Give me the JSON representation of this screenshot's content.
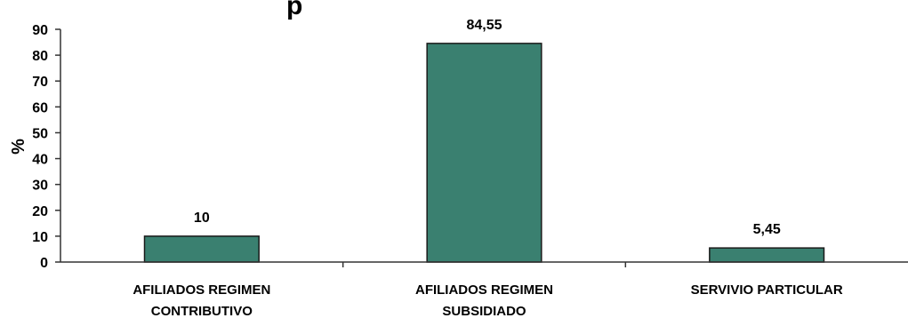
{
  "chart_data": {
    "type": "bar",
    "categories": [
      [
        "AFILIADOS REGIMEN",
        "CONTRIBUTIVO"
      ],
      [
        "AFILIADOS REGIMEN",
        "SUBSIDIADO"
      ],
      [
        "SERVIVIO PARTICULAR"
      ]
    ],
    "values": [
      10,
      84.55,
      5.45
    ],
    "value_labels": [
      "10",
      "84,55",
      "5,45"
    ],
    "title_fragment": "p",
    "ylabel": "%",
    "ylim": [
      0,
      90
    ],
    "yticks": [
      0,
      10,
      20,
      30,
      40,
      50,
      60,
      70,
      80,
      90
    ],
    "grid": false,
    "legend": "none",
    "colors": {
      "bar_fill": "#3a8070",
      "bar_stroke": "#1a1a1a",
      "axis": "#333333"
    }
  }
}
